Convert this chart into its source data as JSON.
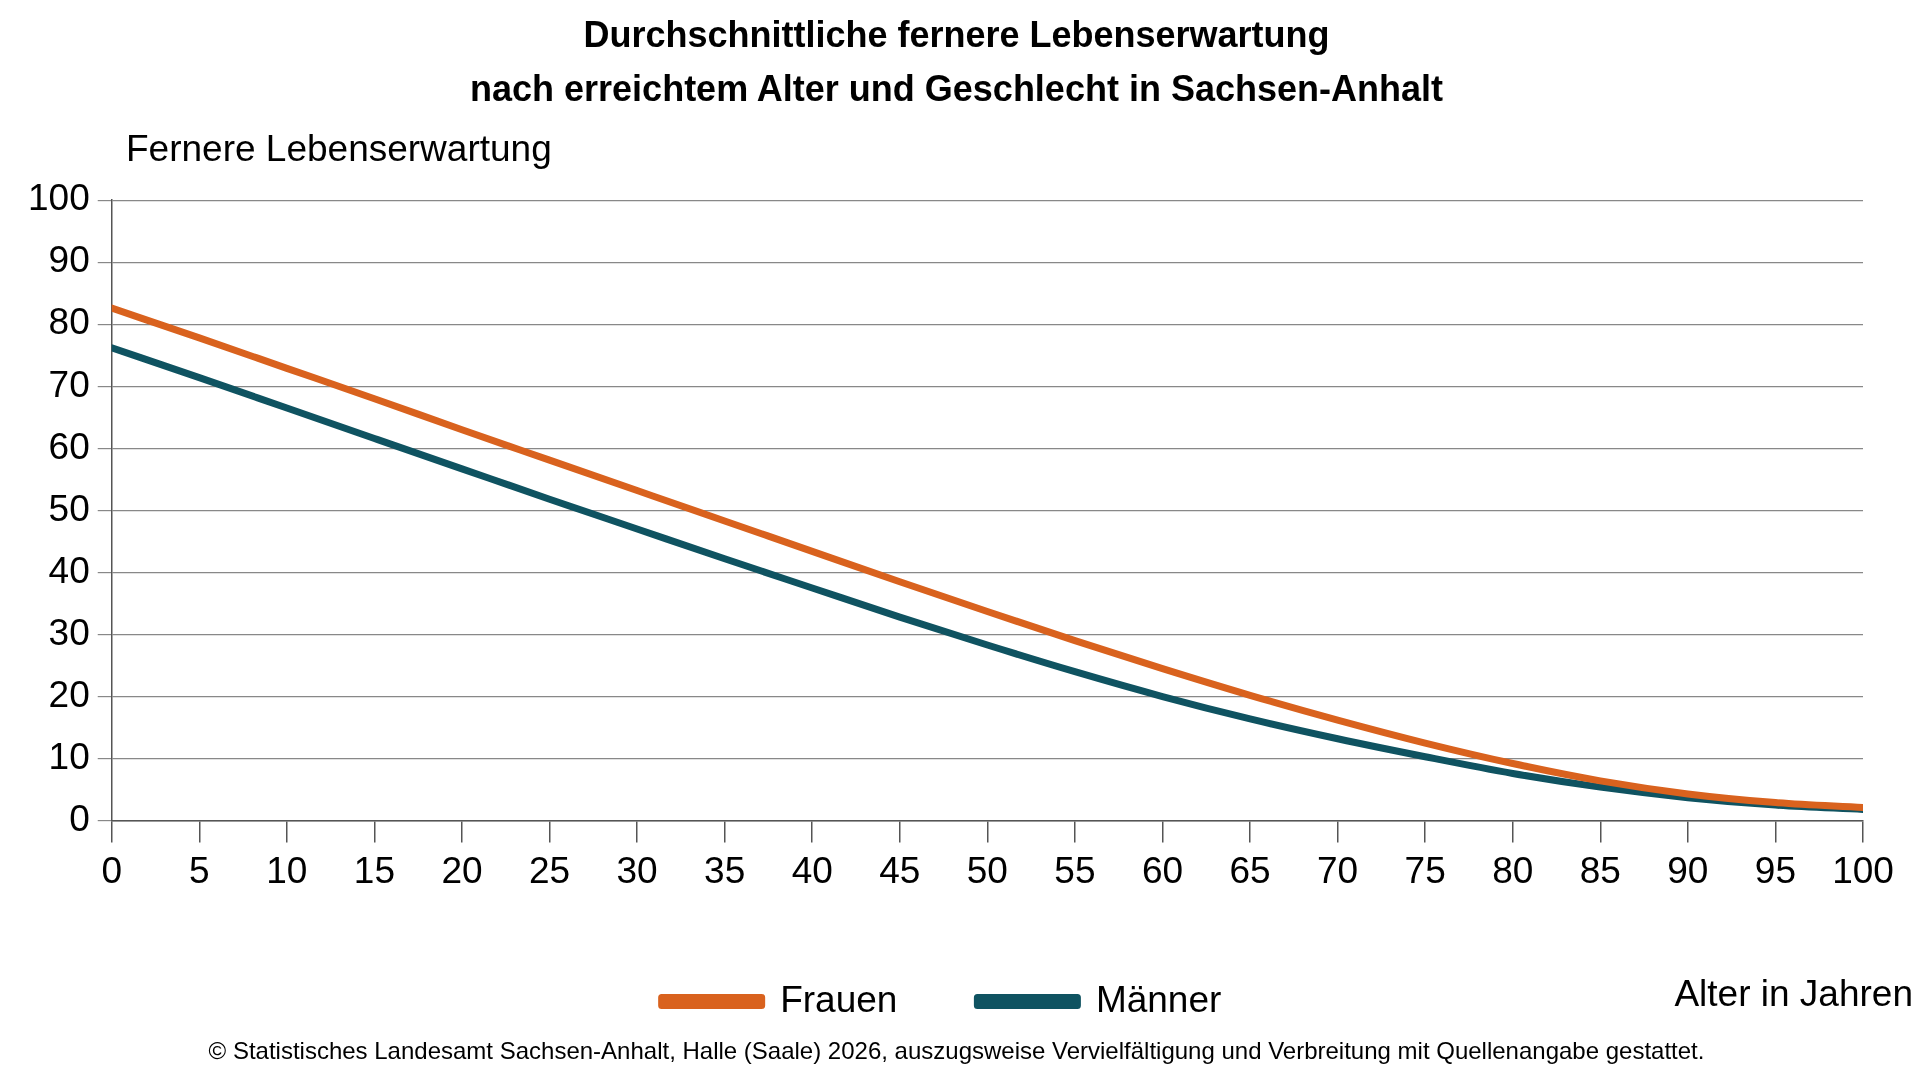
{
  "chart_data": {
    "type": "line",
    "title": "Durchschnittliche fernere Lebenserwartung\nnach erreichtem Alter und Geschlecht in Sachsen-Anhalt",
    "ylabel": "Fernere Lebenserwartung",
    "xlabel": "Alter in Jahren",
    "x": [
      0,
      5,
      10,
      15,
      20,
      25,
      30,
      35,
      40,
      45,
      50,
      55,
      60,
      65,
      70,
      75,
      80,
      85,
      90,
      95,
      100
    ],
    "series": [
      {
        "name": "Frauen",
        "color": "#d9621e",
        "values": [
          82.6,
          77.8,
          72.9,
          68.0,
          63.0,
          58.1,
          53.2,
          48.3,
          43.4,
          38.5,
          33.7,
          29.0,
          24.5,
          20.2,
          16.2,
          12.5,
          9.2,
          6.4,
          4.3,
          2.9,
          2.1
        ]
      },
      {
        "name": "Männer",
        "color": "#0f5361",
        "values": [
          76.2,
          71.4,
          66.5,
          61.6,
          56.7,
          51.8,
          47.0,
          42.2,
          37.5,
          32.8,
          28.3,
          24.0,
          20.0,
          16.4,
          13.2,
          10.3,
          7.6,
          5.4,
          3.7,
          2.5,
          1.8
        ]
      }
    ],
    "xlim": [
      0,
      100
    ],
    "xticks": [
      0,
      5,
      10,
      15,
      20,
      25,
      30,
      35,
      40,
      45,
      50,
      55,
      60,
      65,
      70,
      75,
      80,
      85,
      90,
      95,
      100
    ],
    "ylim": [
      0,
      100
    ],
    "yticks": [
      0,
      10,
      20,
      30,
      40,
      50,
      60,
      70,
      80,
      90,
      100
    ],
    "grid": "y",
    "legend": "bottom",
    "marker": "none",
    "line_style": "solid",
    "annotations": [
      "© Statistisches Landesamt Sachsen-Anhalt, Halle (Saale) 2026, auszugsweise Vervielfältigung und Verbreitung mit Quellenangabe gestattet."
    ]
  }
}
